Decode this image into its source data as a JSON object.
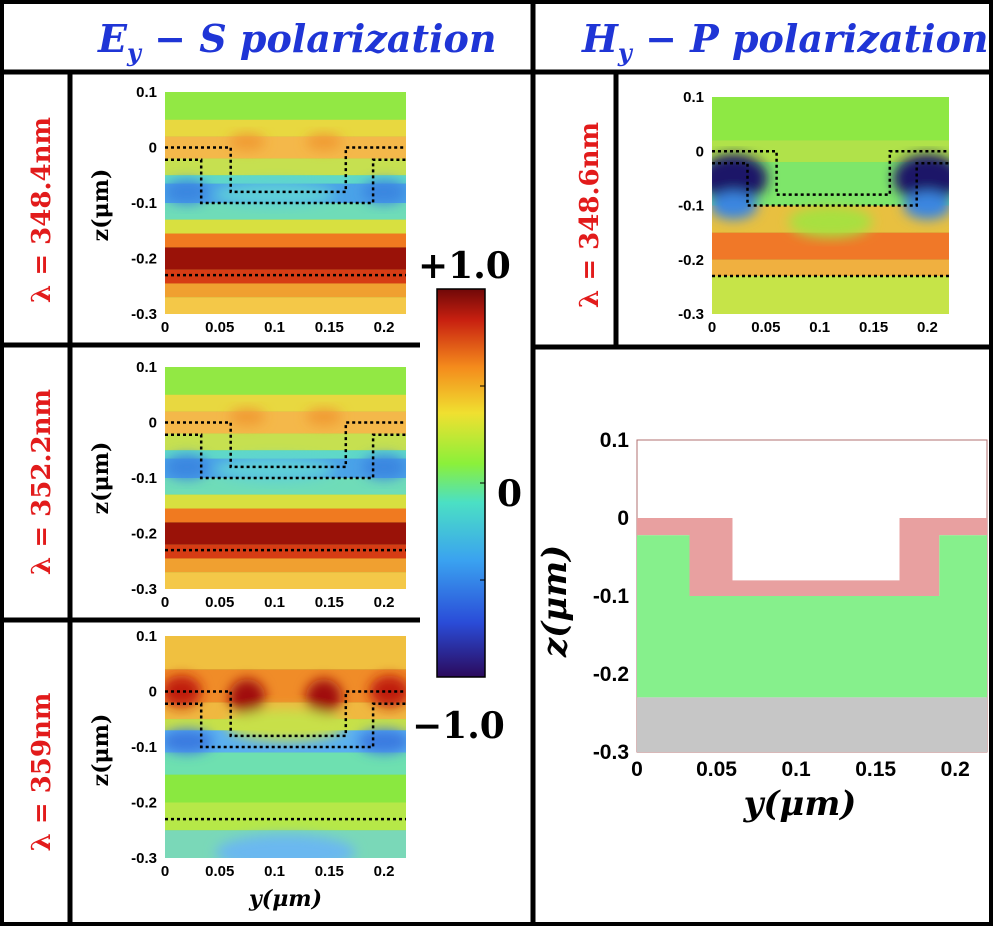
{
  "headers": {
    "left": "E_y − S polarization",
    "left_parts": [
      "E",
      "y",
      " − S polarization"
    ],
    "right": "H_y − P polarization",
    "right_parts": [
      "H",
      "y",
      " − P polarization"
    ]
  },
  "colors": {
    "header_text": "#1f35d6",
    "wavelength_text": "#e21b1b"
  },
  "panels": [
    {
      "id": "s1",
      "wavelength_label": "λ = 348.4nm",
      "field": "Ey",
      "xlabel": "",
      "ylabel": "z(μm)"
    },
    {
      "id": "s2",
      "wavelength_label": "λ = 352.2nm",
      "field": "Ey",
      "xlabel": "",
      "ylabel": "z(μm)"
    },
    {
      "id": "s3",
      "wavelength_label": "λ = 359nm",
      "field": "Ey",
      "xlabel": "y(μm)",
      "ylabel": "z(μm)"
    },
    {
      "id": "p1",
      "wavelength_label": "λ = 348.6nm",
      "field": "Hy",
      "xlabel": "",
      "ylabel": ""
    }
  ],
  "axes": {
    "x_range": [
      0,
      0.22
    ],
    "y_range": [
      -0.3,
      0.1
    ],
    "x_ticks": [
      "0",
      "0.05",
      "0.1",
      "0.15",
      "0.2"
    ],
    "y_ticks": [
      "0.1",
      "0",
      "-0.1",
      "-0.2",
      "-0.3"
    ],
    "x_tick_values": [
      0,
      0.05,
      0.1,
      0.15,
      0.2
    ],
    "y_tick_values": [
      0.1,
      0,
      -0.1,
      -0.2,
      -0.3
    ]
  },
  "colorbar": {
    "max_label": "+1.0",
    "mid_label": "0",
    "min_label": "−1.0",
    "colormap": "jet"
  },
  "structure": {
    "xlabel": "y(μm)",
    "ylabel": "z(μm)",
    "outline_polyline": [
      [
        0,
        0
      ],
      [
        0.06,
        0
      ],
      [
        0.06,
        -0.08
      ],
      [
        0.165,
        -0.08
      ],
      [
        0.165,
        0
      ],
      [
        0.22,
        0
      ]
    ],
    "inner_polyline": [
      [
        0,
        -0.022
      ],
      [
        0.033,
        -0.022
      ],
      [
        0.033,
        -0.1
      ],
      [
        0.19,
        -0.1
      ],
      [
        0.19,
        -0.022
      ],
      [
        0.22,
        -0.022
      ]
    ],
    "substrate_top": -0.23,
    "layers": [
      {
        "name": "cladding",
        "color": "#ffffff"
      },
      {
        "name": "coating",
        "color": "#e8a0a0"
      },
      {
        "name": "core",
        "color": "#86f08c"
      },
      {
        "name": "substrate",
        "color": "#c6c6c6"
      }
    ]
  }
}
